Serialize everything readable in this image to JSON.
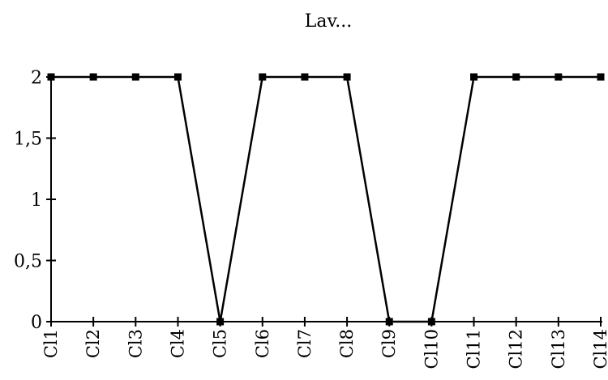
{
  "chart_data": {
    "type": "line",
    "title": "Lav...",
    "xlabel": "",
    "ylabel": "",
    "categories": [
      "Cl1",
      "Cl2",
      "Cl3",
      "Cl4",
      "Cl5",
      "Cl6",
      "Cl7",
      "Cl8",
      "Cl9",
      "Cl10",
      "Cl11",
      "Cl12",
      "Cl13",
      "Cl14"
    ],
    "series": [
      {
        "values": [
          2,
          2,
          2,
          2,
          0,
          2,
          2,
          2,
          0,
          0,
          2,
          2,
          2,
          2
        ]
      }
    ],
    "ylim": [
      0,
      2
    ],
    "yticks": [
      0,
      0.5,
      1,
      1.5,
      2
    ],
    "ytick_labels": [
      "0",
      "0,5",
      "1",
      "1,5",
      "2"
    ],
    "grid": false,
    "legend": "none",
    "colors": {
      "line": "#000000",
      "marker": "#000000",
      "axis": "#000000"
    }
  }
}
